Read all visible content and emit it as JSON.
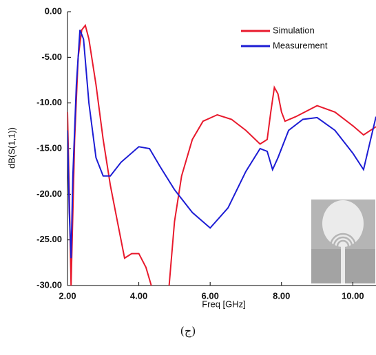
{
  "chart_data": {
    "type": "line",
    "xlabel": "Freq [GHz]",
    "ylabel": "dB(S(1,1))",
    "caption": "(ج)",
    "xlim": [
      2,
      10.65
    ],
    "ylim": [
      -30,
      0
    ],
    "xticks": [
      {
        "value": 2,
        "label": "2.00"
      },
      {
        "value": 4,
        "label": "4.00"
      },
      {
        "value": 6,
        "label": "6.00"
      },
      {
        "value": 8,
        "label": "8.00"
      },
      {
        "value": 10,
        "label": "10.00"
      }
    ],
    "yticks": [
      {
        "value": 0,
        "label": "0.00"
      },
      {
        "value": -5,
        "label": "-5.00"
      },
      {
        "value": -10,
        "label": "-10.00"
      },
      {
        "value": -15,
        "label": "-15.00"
      },
      {
        "value": -20,
        "label": "-20.00"
      },
      {
        "value": -25,
        "label": "-25.00"
      },
      {
        "value": -30,
        "label": "-30.00"
      }
    ],
    "legend": "upper right",
    "series": [
      {
        "name": "Simulation",
        "color": "#e8192c",
        "x": [
          2.0,
          2.05,
          2.1,
          2.15,
          2.2,
          2.3,
          2.4,
          2.5,
          2.6,
          2.8,
          3.0,
          3.2,
          3.4,
          3.6,
          3.8,
          4.0,
          4.2,
          4.35,
          4.6,
          4.85,
          5.0,
          5.2,
          5.5,
          5.8,
          6.2,
          6.6,
          7.0,
          7.4,
          7.6,
          7.7,
          7.8,
          7.9,
          8.0,
          8.1,
          8.4,
          9.0,
          9.5,
          10.0,
          10.3,
          10.65
        ],
        "values": [
          -11,
          -20,
          -30,
          -22,
          -14,
          -5,
          -2,
          -1.5,
          -3,
          -8,
          -14,
          -19,
          -23,
          -27,
          -26.5,
          -26.5,
          -28,
          -30,
          null,
          -30,
          -23,
          -18,
          -14,
          -12,
          -11.3,
          -11.8,
          -13,
          -14.5,
          -14,
          -11,
          -8.3,
          -9,
          -11,
          -12,
          -11.5,
          -10.3,
          -11,
          -12.5,
          -13.5,
          -12.6
        ]
      },
      {
        "name": "Measurement",
        "color": "#1c1cd4",
        "x": [
          2.0,
          2.05,
          2.1,
          2.15,
          2.25,
          2.35,
          2.45,
          2.6,
          2.8,
          3.0,
          3.2,
          3.5,
          4.0,
          4.3,
          4.6,
          5.0,
          5.5,
          6.0,
          6.5,
          7.0,
          7.4,
          7.6,
          7.75,
          7.9,
          8.2,
          8.6,
          9.0,
          9.5,
          10.0,
          10.3,
          10.5,
          10.65
        ],
        "values": [
          -13,
          -22,
          -27,
          -18,
          -8,
          -2,
          -3,
          -10,
          -16,
          -18,
          -18,
          -16.5,
          -14.8,
          -15,
          -17,
          -19.5,
          -22,
          -23.7,
          -21.5,
          -17.5,
          -15,
          -15.3,
          -17.3,
          -16,
          -13,
          -11.8,
          -11.6,
          -13,
          -15.5,
          -17.3,
          -14,
          -11.5
        ]
      }
    ]
  }
}
